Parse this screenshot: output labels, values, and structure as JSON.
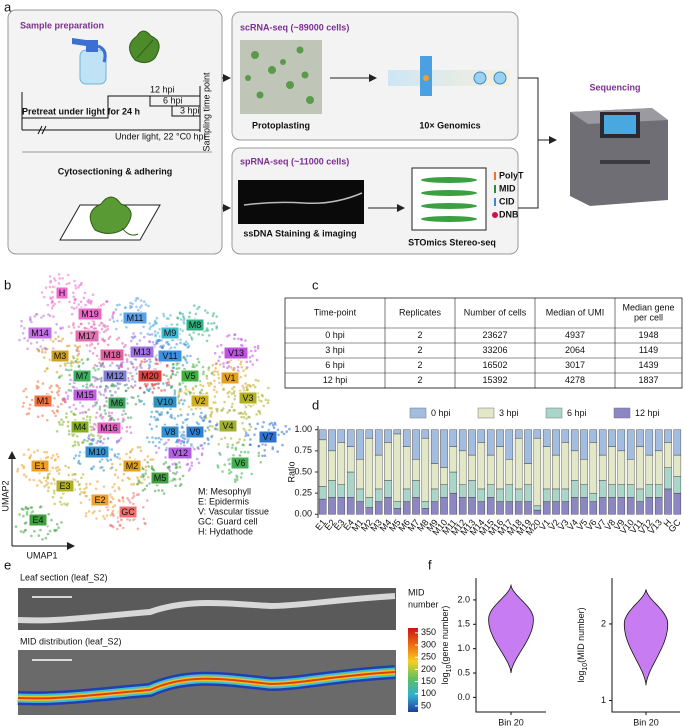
{
  "panel_labels": [
    "a",
    "b",
    "c",
    "d",
    "e",
    "f"
  ],
  "a": {
    "sample_title": "Sample preparation",
    "timeline": {
      "t12": "12 hpi",
      "t6": "6 hpi",
      "t3": "3 hpi",
      "t0": "0 hpi",
      "sampling": "Sampling time point",
      "pretreat": "Pretreat under light for 24 h",
      "condition": "Under light, 22 °C"
    },
    "cyto": "Cytosectioning & adhering",
    "sc_title": "scRNA-seq (~89000 cells)",
    "protoplasting": "Protoplasting",
    "genomics": "10× Genomics",
    "sp_title": "spRNA-seq (~11000 cells)",
    "staining": "ssDNA Staining & imaging",
    "stereo": "STOmics Stereo-seq",
    "chip_legend": [
      {
        "label": "PolyT",
        "color": "#f07030"
      },
      {
        "label": "MID",
        "color": "#2a8a3a"
      },
      {
        "label": "CID",
        "color": "#3a8ad0"
      },
      {
        "label": "DNB",
        "color": "#d0104a"
      }
    ],
    "sequencing": "Sequencing"
  },
  "b": {
    "xlabel": "UMAP1",
    "ylabel": "UMAP2",
    "clusters": [
      {
        "label": "H",
        "color": "#f06cd0"
      },
      {
        "label": "M19",
        "color": "#e868c8"
      },
      {
        "label": "M14",
        "color": "#c070e0"
      },
      {
        "label": "M17",
        "color": "#e070b0"
      },
      {
        "label": "M11",
        "color": "#5aa0e8"
      },
      {
        "label": "M9",
        "color": "#40b8d0"
      },
      {
        "label": "M8",
        "color": "#30b080"
      },
      {
        "label": "M3",
        "color": "#d0a020"
      },
      {
        "label": "M18",
        "color": "#e060a0"
      },
      {
        "label": "M13",
        "color": "#a070e0"
      },
      {
        "label": "V11",
        "color": "#4090e0"
      },
      {
        "label": "V13",
        "color": "#c050e0"
      },
      {
        "label": "V1",
        "color": "#e0a020"
      },
      {
        "label": "M7",
        "color": "#40b060"
      },
      {
        "label": "M12",
        "color": "#8080d0"
      },
      {
        "label": "M20",
        "color": "#e04040"
      },
      {
        "label": "V5",
        "color": "#40b040"
      },
      {
        "label": "M1",
        "color": "#f07040"
      },
      {
        "label": "M15",
        "color": "#c060e0"
      },
      {
        "label": "M6",
        "color": "#40a060"
      },
      {
        "label": "V10",
        "color": "#3090c0"
      },
      {
        "label": "V2",
        "color": "#d0b020"
      },
      {
        "label": "V3",
        "color": "#b0b020"
      },
      {
        "label": "M4",
        "color": "#80b020"
      },
      {
        "label": "V4",
        "color": "#a0b030"
      },
      {
        "label": "M16",
        "color": "#e060c0"
      },
      {
        "label": "V8",
        "color": "#3090d0"
      },
      {
        "label": "V9",
        "color": "#3080d0"
      },
      {
        "label": "V7",
        "color": "#3070d0"
      },
      {
        "label": "M10",
        "color": "#3090d0"
      },
      {
        "label": "V12",
        "color": "#b060e0"
      },
      {
        "label": "V6",
        "color": "#40b050"
      },
      {
        "label": "E1",
        "color": "#f0a020"
      },
      {
        "label": "M2",
        "color": "#e0a020"
      },
      {
        "label": "E3",
        "color": "#b0b020"
      },
      {
        "label": "M5",
        "color": "#40a040"
      },
      {
        "label": "E2",
        "color": "#f0a030"
      },
      {
        "label": "GC",
        "color": "#f07070"
      },
      {
        "label": "E4",
        "color": "#40a040"
      }
    ],
    "legend": [
      "M: Mesophyll",
      "E: Epidermis",
      "V: Vascular tissue",
      "GC: Guard cell",
      "H: Hydathode"
    ]
  },
  "c": {
    "header": [
      [
        "Time-point"
      ],
      [
        "Replicates"
      ],
      [
        "Number of cells"
      ],
      [
        "Median of UMI"
      ],
      [
        "Median gene",
        "per cell"
      ]
    ],
    "rows": [
      [
        "0 hpi",
        2,
        23627,
        4937,
        1948
      ],
      [
        "3 hpi",
        2,
        33206,
        2064,
        1149
      ],
      [
        "6 hpi",
        2,
        16502,
        3017,
        1439
      ],
      [
        "12 hpi",
        2,
        15392,
        4278,
        1837
      ]
    ]
  },
  "e": {
    "section_title": "Leaf section (leaf_S2)",
    "mid_title": "MID distribution (leaf_S2)",
    "colorbar": {
      "label": [
        "MID",
        "number"
      ],
      "lim": [
        25,
        370
      ],
      "ticks": [
        350,
        300,
        250,
        200,
        150,
        100,
        50
      ]
    }
  },
  "chart_data": [
    {
      "type": "stacked-bar",
      "ylabel": "Ratio",
      "categories": [
        "E1",
        "E2",
        "E3",
        "E4",
        "M1",
        "M2",
        "M3",
        "M4",
        "M5",
        "M6",
        "M7",
        "M8",
        "M9",
        "M10",
        "M11",
        "M12",
        "M13",
        "M14",
        "M15",
        "M16",
        "M17",
        "M18",
        "M19",
        "M20",
        "V1",
        "V2",
        "V3",
        "V4",
        "V5",
        "V6",
        "V7",
        "V8",
        "V9",
        "V10",
        "V11",
        "V12",
        "V13",
        "H",
        "GC"
      ],
      "series": [
        {
          "name": "0 hpi",
          "color": "#a3bde0",
          "values": [
            0.12,
            0.25,
            0.15,
            0.2,
            0.35,
            0.1,
            0.3,
            0.15,
            0.05,
            0.2,
            0.35,
            0.1,
            0.4,
            0.45,
            0.2,
            0.25,
            0.3,
            0.15,
            0.3,
            0.2,
            0.35,
            0.1,
            0.4,
            0.1,
            0.2,
            0.3,
            0.15,
            0.25,
            0.35,
            0.15,
            0.3,
            0.2,
            0.25,
            0.35,
            0.2,
            0.3,
            0.25,
            0.15,
            0.3
          ]
        },
        {
          "name": "3 hpi",
          "color": "#e2e7c8",
          "values": [
            0.55,
            0.35,
            0.5,
            0.3,
            0.35,
            0.7,
            0.4,
            0.45,
            0.8,
            0.5,
            0.25,
            0.75,
            0.3,
            0.2,
            0.3,
            0.4,
            0.3,
            0.55,
            0.35,
            0.5,
            0.3,
            0.6,
            0.25,
            0.8,
            0.5,
            0.4,
            0.55,
            0.35,
            0.3,
            0.6,
            0.3,
            0.45,
            0.4,
            0.3,
            0.5,
            0.35,
            0.4,
            0.3,
            0.25
          ]
        },
        {
          "name": "6 hpi",
          "color": "#a9d6c9",
          "values": [
            0.15,
            0.2,
            0.15,
            0.3,
            0.15,
            0.12,
            0.15,
            0.2,
            0.08,
            0.15,
            0.2,
            0.08,
            0.15,
            0.15,
            0.25,
            0.15,
            0.2,
            0.15,
            0.15,
            0.15,
            0.2,
            0.15,
            0.2,
            0.05,
            0.15,
            0.15,
            0.15,
            0.2,
            0.15,
            0.1,
            0.2,
            0.15,
            0.15,
            0.15,
            0.15,
            0.15,
            0.15,
            0.25,
            0.2
          ]
        },
        {
          "name": "12 hpi",
          "color": "#8c86c2",
          "values": [
            0.18,
            0.2,
            0.2,
            0.2,
            0.15,
            0.08,
            0.15,
            0.2,
            0.07,
            0.15,
            0.2,
            0.07,
            0.15,
            0.2,
            0.25,
            0.2,
            0.2,
            0.15,
            0.2,
            0.15,
            0.15,
            0.15,
            0.15,
            0.05,
            0.15,
            0.15,
            0.15,
            0.2,
            0.2,
            0.15,
            0.2,
            0.2,
            0.2,
            0.2,
            0.15,
            0.2,
            0.2,
            0.3,
            0.25
          ]
        }
      ],
      "ylim": [
        -0.02,
        1.02
      ],
      "yticks": [
        {
          "value": 0,
          "label": "0.00"
        },
        {
          "value": 0.25,
          "label": "0.25"
        },
        {
          "value": 0.5,
          "label": "0.50"
        },
        {
          "value": 0.75,
          "label": "0.75"
        },
        {
          "value": 1,
          "label": "1.00"
        }
      ],
      "legend": "top"
    },
    {
      "type": "violin",
      "ylabel": {
        "base": "log",
        "sub": "10",
        "rest": "(gene number)"
      },
      "categories": [
        "Bin 20"
      ],
      "color": "#c77cf2",
      "min": [
        0.5
      ],
      "mode": [
        1.6
      ],
      "max": [
        2.3
      ],
      "ylim": [
        -0.3,
        2.45
      ],
      "yticks": [
        {
          "value": 0,
          "label": "0.0"
        },
        0.5,
        {
          "value": 1,
          "label": "1.0"
        },
        1.5,
        {
          "value": 2,
          "label": "2.0"
        }
      ]
    },
    {
      "type": "violin",
      "ylabel": {
        "base": "log",
        "sub": "10",
        "rest": "(MID number)"
      },
      "categories": [
        "Bin 20"
      ],
      "color": "#c77cf2",
      "min": [
        1.2
      ],
      "mode": [
        2.0
      ],
      "max": [
        2.45
      ],
      "ylim": [
        0.85,
        2.6
      ],
      "yticks": [
        1,
        2
      ]
    }
  ]
}
